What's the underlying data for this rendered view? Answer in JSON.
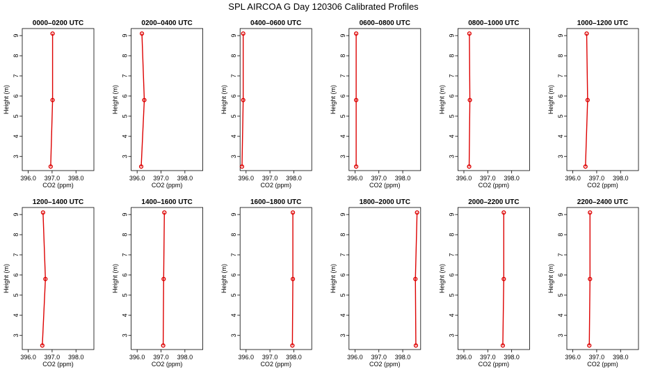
{
  "title": "SPL AIRCOA G  Day 120306  Calibrated Profiles",
  "colors": {
    "profile": "#dd0000",
    "axes": "#000000"
  },
  "chart_data": {
    "type": "line",
    "xlabel": "CO2 (ppm)",
    "ylabel": "Height (m)",
    "xlim": [
      395.75,
      398.75
    ],
    "ylim": [
      2.3,
      9.35
    ],
    "xticks": [
      396.0,
      397.0,
      398.0
    ],
    "xtick_labels": [
      "396.0",
      "397.0",
      "398.0"
    ],
    "yticks": [
      3,
      4,
      5,
      6,
      7,
      8,
      9
    ],
    "ytick_labels": [
      "3",
      "4",
      "5",
      "6",
      "7",
      "8",
      "9"
    ],
    "grid": false,
    "heights": [
      2.5,
      5.8,
      9.1
    ],
    "panels": [
      {
        "title": "0000–0200 UTC",
        "values": [
          396.94,
          397.02,
          397.02
        ]
      },
      {
        "title": "0200–0400 UTC",
        "values": [
          396.17,
          396.3,
          396.2
        ]
      },
      {
        "title": "0400–0600 UTC",
        "values": [
          395.83,
          395.88,
          395.88
        ]
      },
      {
        "title": "0600–0800 UTC",
        "values": [
          396.05,
          396.05,
          396.05
        ]
      },
      {
        "title": "0800–1000 UTC",
        "values": [
          396.22,
          396.25,
          396.23
        ]
      },
      {
        "title": "1000–1200 UTC",
        "values": [
          396.53,
          396.62,
          396.58
        ]
      },
      {
        "title": "1200–1400 UTC",
        "values": [
          396.59,
          396.72,
          396.62
        ]
      },
      {
        "title": "1400–1600 UTC",
        "values": [
          397.09,
          397.11,
          397.14
        ]
      },
      {
        "title": "1600–1800 UTC",
        "values": [
          397.94,
          397.96,
          397.96
        ]
      },
      {
        "title": "1800–2000 UTC",
        "values": [
          398.55,
          398.53,
          398.6
        ]
      },
      {
        "title": "2000–2200 UTC",
        "values": [
          397.63,
          397.67,
          397.67
        ]
      },
      {
        "title": "2200–2400 UTC",
        "values": [
          396.69,
          396.72,
          396.72
        ]
      }
    ]
  }
}
